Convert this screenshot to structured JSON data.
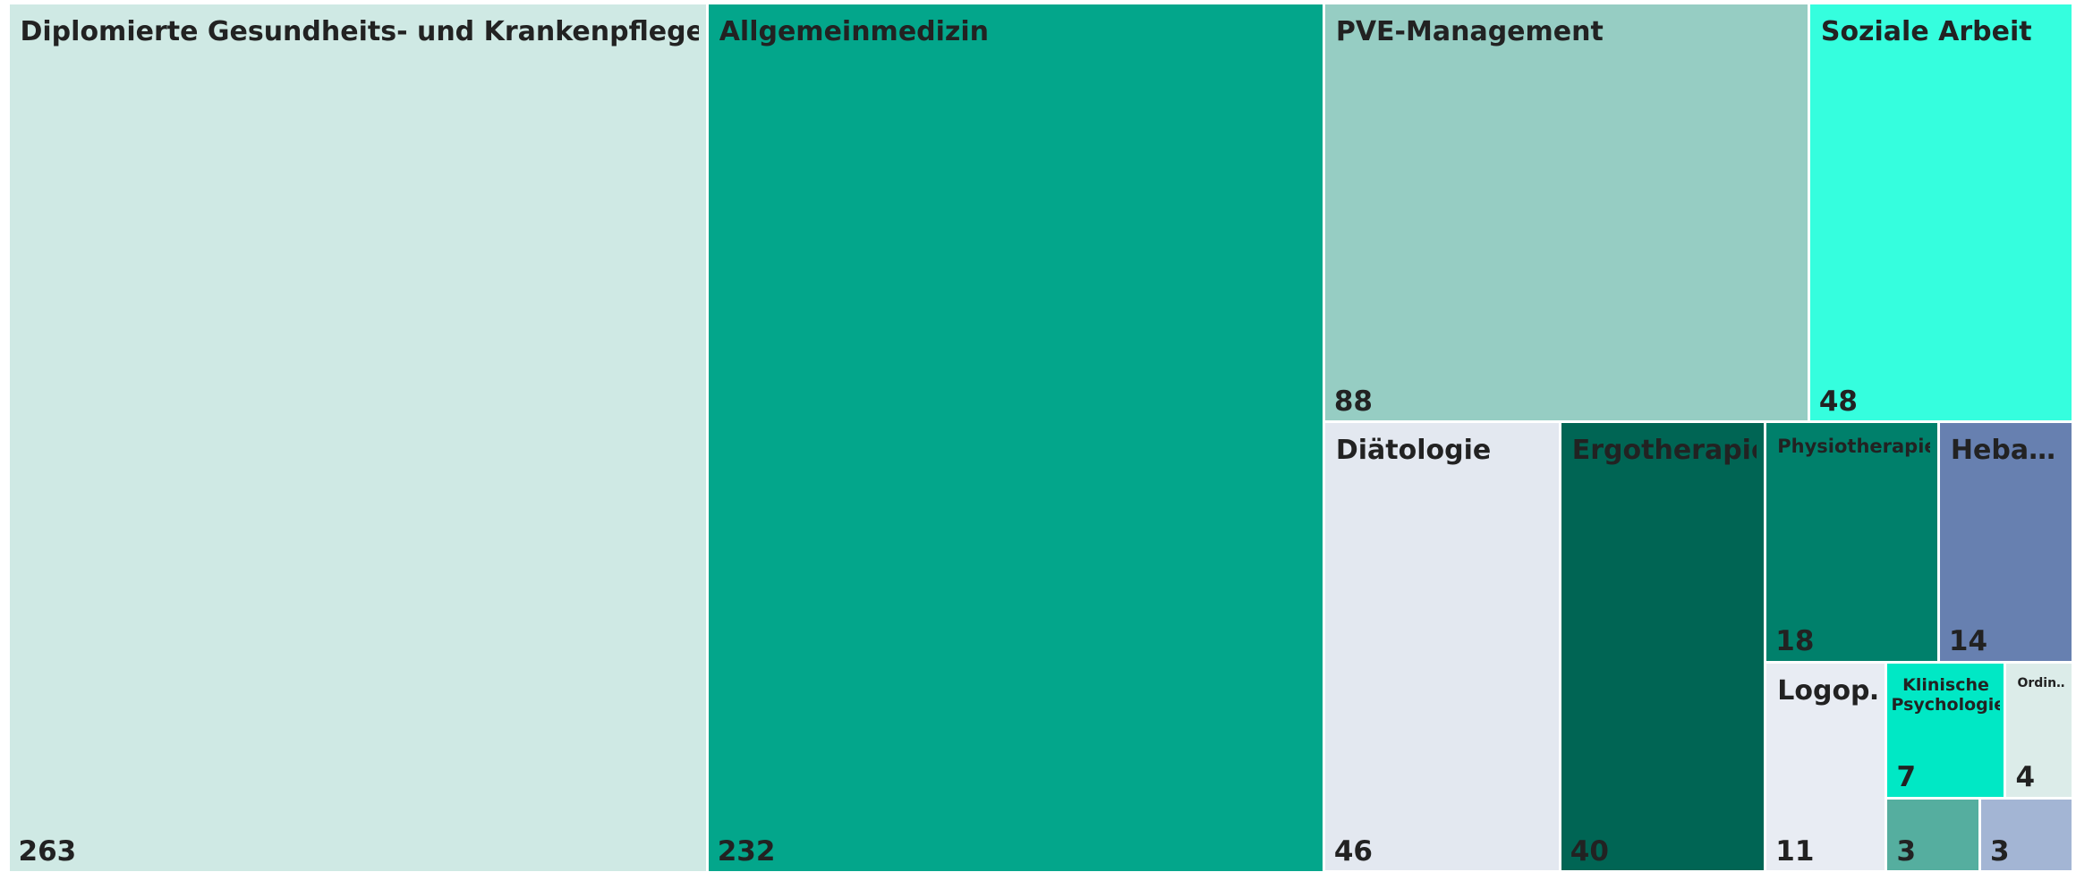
{
  "chart_data": {
    "type": "treemap",
    "categories": [
      "Diplomierte Gesundheits- und Krankenpflege",
      "Allgemeinmedizin",
      "PVE-Management",
      "Soziale Arbeit",
      "Diätologie",
      "Ergotherapie",
      "Physiotherapie",
      "Heba…",
      "Logop…",
      "Klinische Psychologie",
      "Ordin…",
      null,
      null
    ],
    "values": [
      263,
      232,
      88,
      48,
      46,
      40,
      18,
      14,
      11,
      7,
      4,
      3,
      3
    ],
    "colors": [
      "#cfe9e4",
      "#03a68b",
      "#96cdc3",
      "#35fede",
      "#e3e8f0",
      "#006554",
      "#00806b",
      "#6780b0",
      "#e8ecf3",
      "#00e8c5",
      "#dcece9",
      "#55ae9f",
      "#a3b5d4"
    ]
  }
}
